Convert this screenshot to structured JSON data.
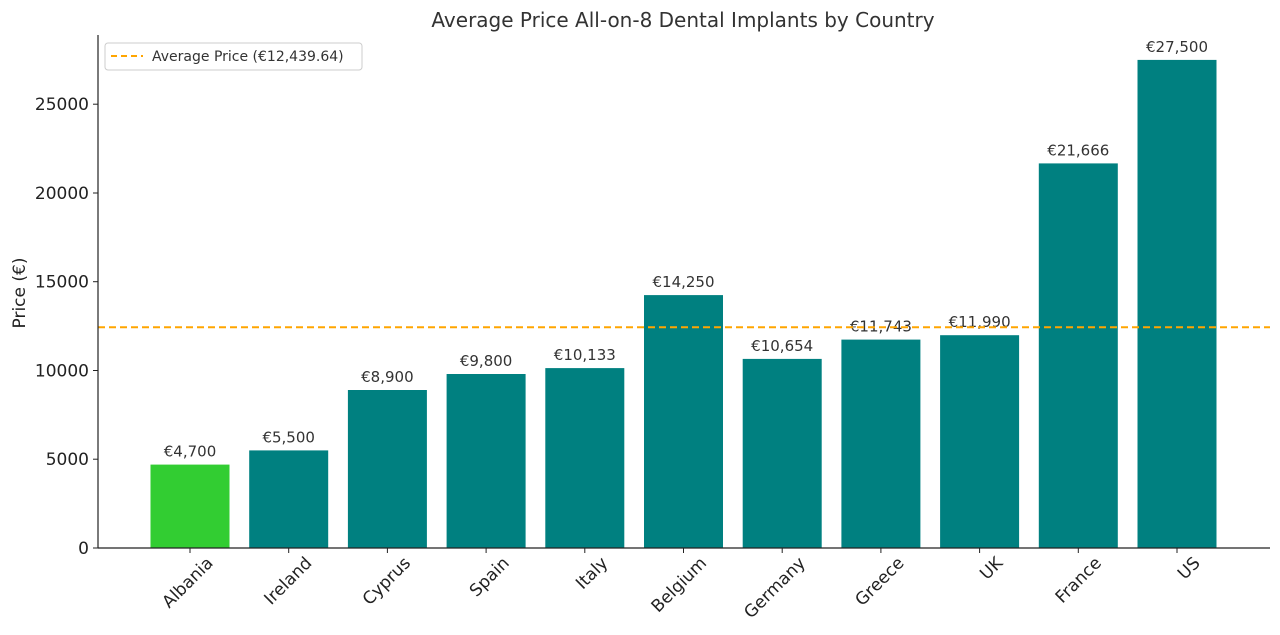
{
  "chart_data": {
    "type": "bar",
    "title": "Average Price All-on-8 Dental Implants by Country",
    "xlabel": "",
    "ylabel": "Price (€)",
    "ylim": [
      0,
      28900
    ],
    "yticks": [
      0,
      5000,
      10000,
      15000,
      20000,
      25000
    ],
    "categories": [
      "Albania",
      "Ireland",
      "Cyprus",
      "Spain",
      "Italy",
      "Belgium",
      "Germany",
      "Greece",
      "UK",
      "France",
      "US"
    ],
    "values": [
      4700,
      5500,
      8900,
      9800,
      10133,
      14250,
      10654,
      11743,
      11990,
      21666,
      27500
    ],
    "data_labels": [
      "€4,700",
      "€5,500",
      "€8,900",
      "€9,800",
      "€10,133",
      "€14,250",
      "€10,654",
      "€11,743",
      "€11,990",
      "€21,666",
      "€27,500"
    ],
    "bar_colors": [
      "#32cd32",
      "#008080",
      "#008080",
      "#008080",
      "#008080",
      "#008080",
      "#008080",
      "#008080",
      "#008080",
      "#008080",
      "#008080"
    ],
    "reference_line": {
      "value": 12439.64,
      "label": "Average Price (€12,439.64)",
      "color": "#ffa500",
      "style": "dashed"
    },
    "legend_position": "top-left",
    "grid": false
  }
}
